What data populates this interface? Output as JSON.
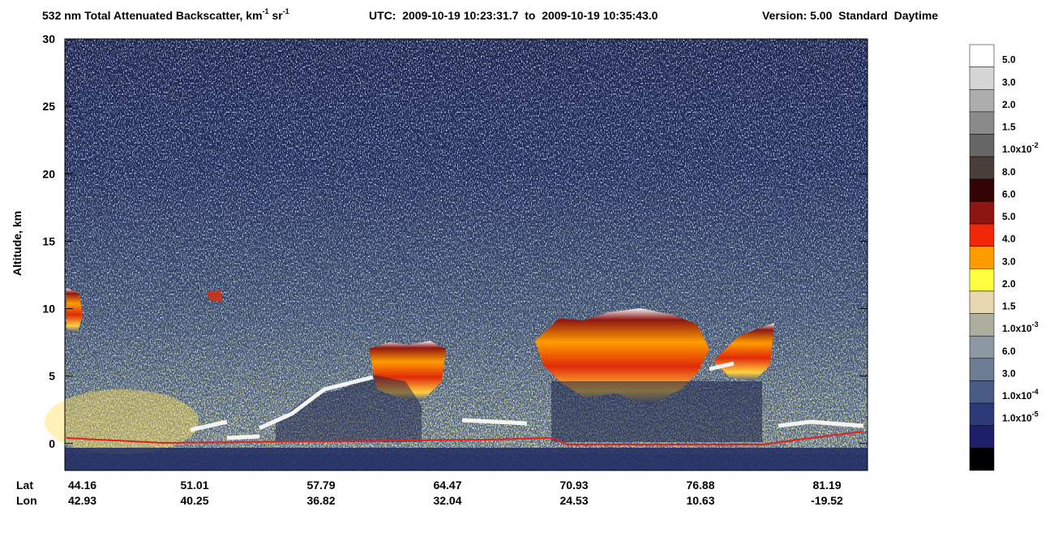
{
  "chart_data": {
    "type": "curtain",
    "title": {
      "text": "532 nm Total Attenuated Backscatter, km",
      "unit_exp": "-1",
      "unit2": " sr",
      "unit2_exp": "-1"
    },
    "subtitle": "UTC:  2009-10-19 10:23:31.7  to  2009-10-19 10:35:43.0",
    "version": "Version: 5.00  Standard  Daytime",
    "ylabel": "Altitude, km",
    "ylim": [
      -2,
      30
    ],
    "yticks": [
      0,
      5,
      10,
      15,
      20,
      25,
      30
    ],
    "x_row_labels": [
      "Lat",
      "Lon"
    ],
    "lat": [
      44.16,
      51.01,
      57.79,
      64.47,
      70.93,
      76.88,
      81.19
    ],
    "lon": [
      42.93,
      40.25,
      36.82,
      32.04,
      24.53,
      10.63,
      -19.52
    ],
    "colorbar": {
      "colors": [
        "#ffffff",
        "#d6d6d6",
        "#adadad",
        "#8a8a8a",
        "#666666",
        "#4a3e3a",
        "#340404",
        "#8e1612",
        "#f02808",
        "#ff9c00",
        "#ffff40",
        "#e8d8b0",
        "#aeae9e",
        "#8c98a2",
        "#6c7c92",
        "#4a5c86",
        "#2c3a7a",
        "#1e1e68",
        "#000000"
      ],
      "labels": [
        "5.0",
        "3.0",
        "2.0",
        "1.5",
        {
          "text": "1.0x10",
          "exp": "-2"
        },
        "8.0",
        "6.0",
        "5.0",
        "4.0",
        "3.0",
        "2.0",
        "1.5",
        {
          "text": "1.0x10",
          "exp": "-3"
        },
        "6.0",
        "3.0",
        {
          "text": "1.0x10",
          "exp": "-4"
        },
        {
          "text": "1.0x10",
          "exp": "-5"
        }
      ]
    }
  }
}
